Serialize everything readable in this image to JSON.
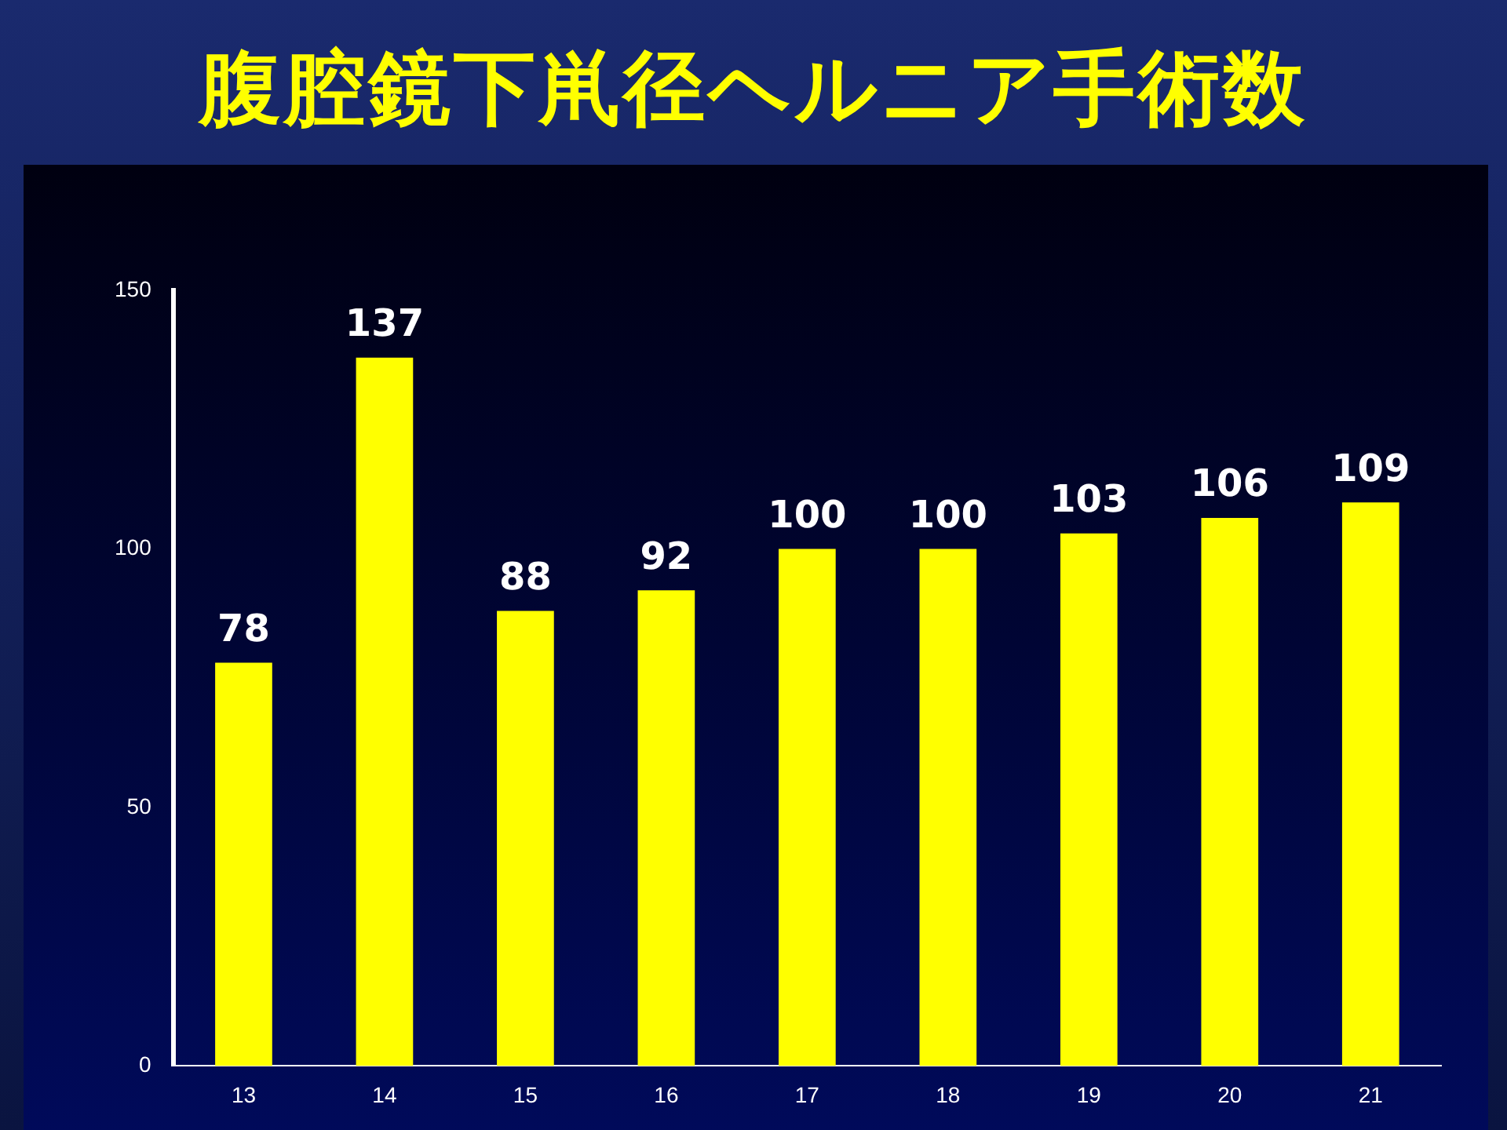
{
  "chart_data": {
    "type": "bar",
    "title": "腹腔鏡下鼡径ヘルニア手術数",
    "categories": [
      "13",
      "14",
      "15",
      "16",
      "17",
      "18",
      "19",
      "20",
      "21"
    ],
    "values": [
      78,
      137,
      88,
      92,
      100,
      100,
      103,
      106,
      109
    ],
    "color": "#ffff00",
    "ylim": [
      0,
      150
    ],
    "yticks": [
      0,
      50,
      100,
      150
    ],
    "grid": false,
    "legend": false,
    "data_labels": true
  }
}
